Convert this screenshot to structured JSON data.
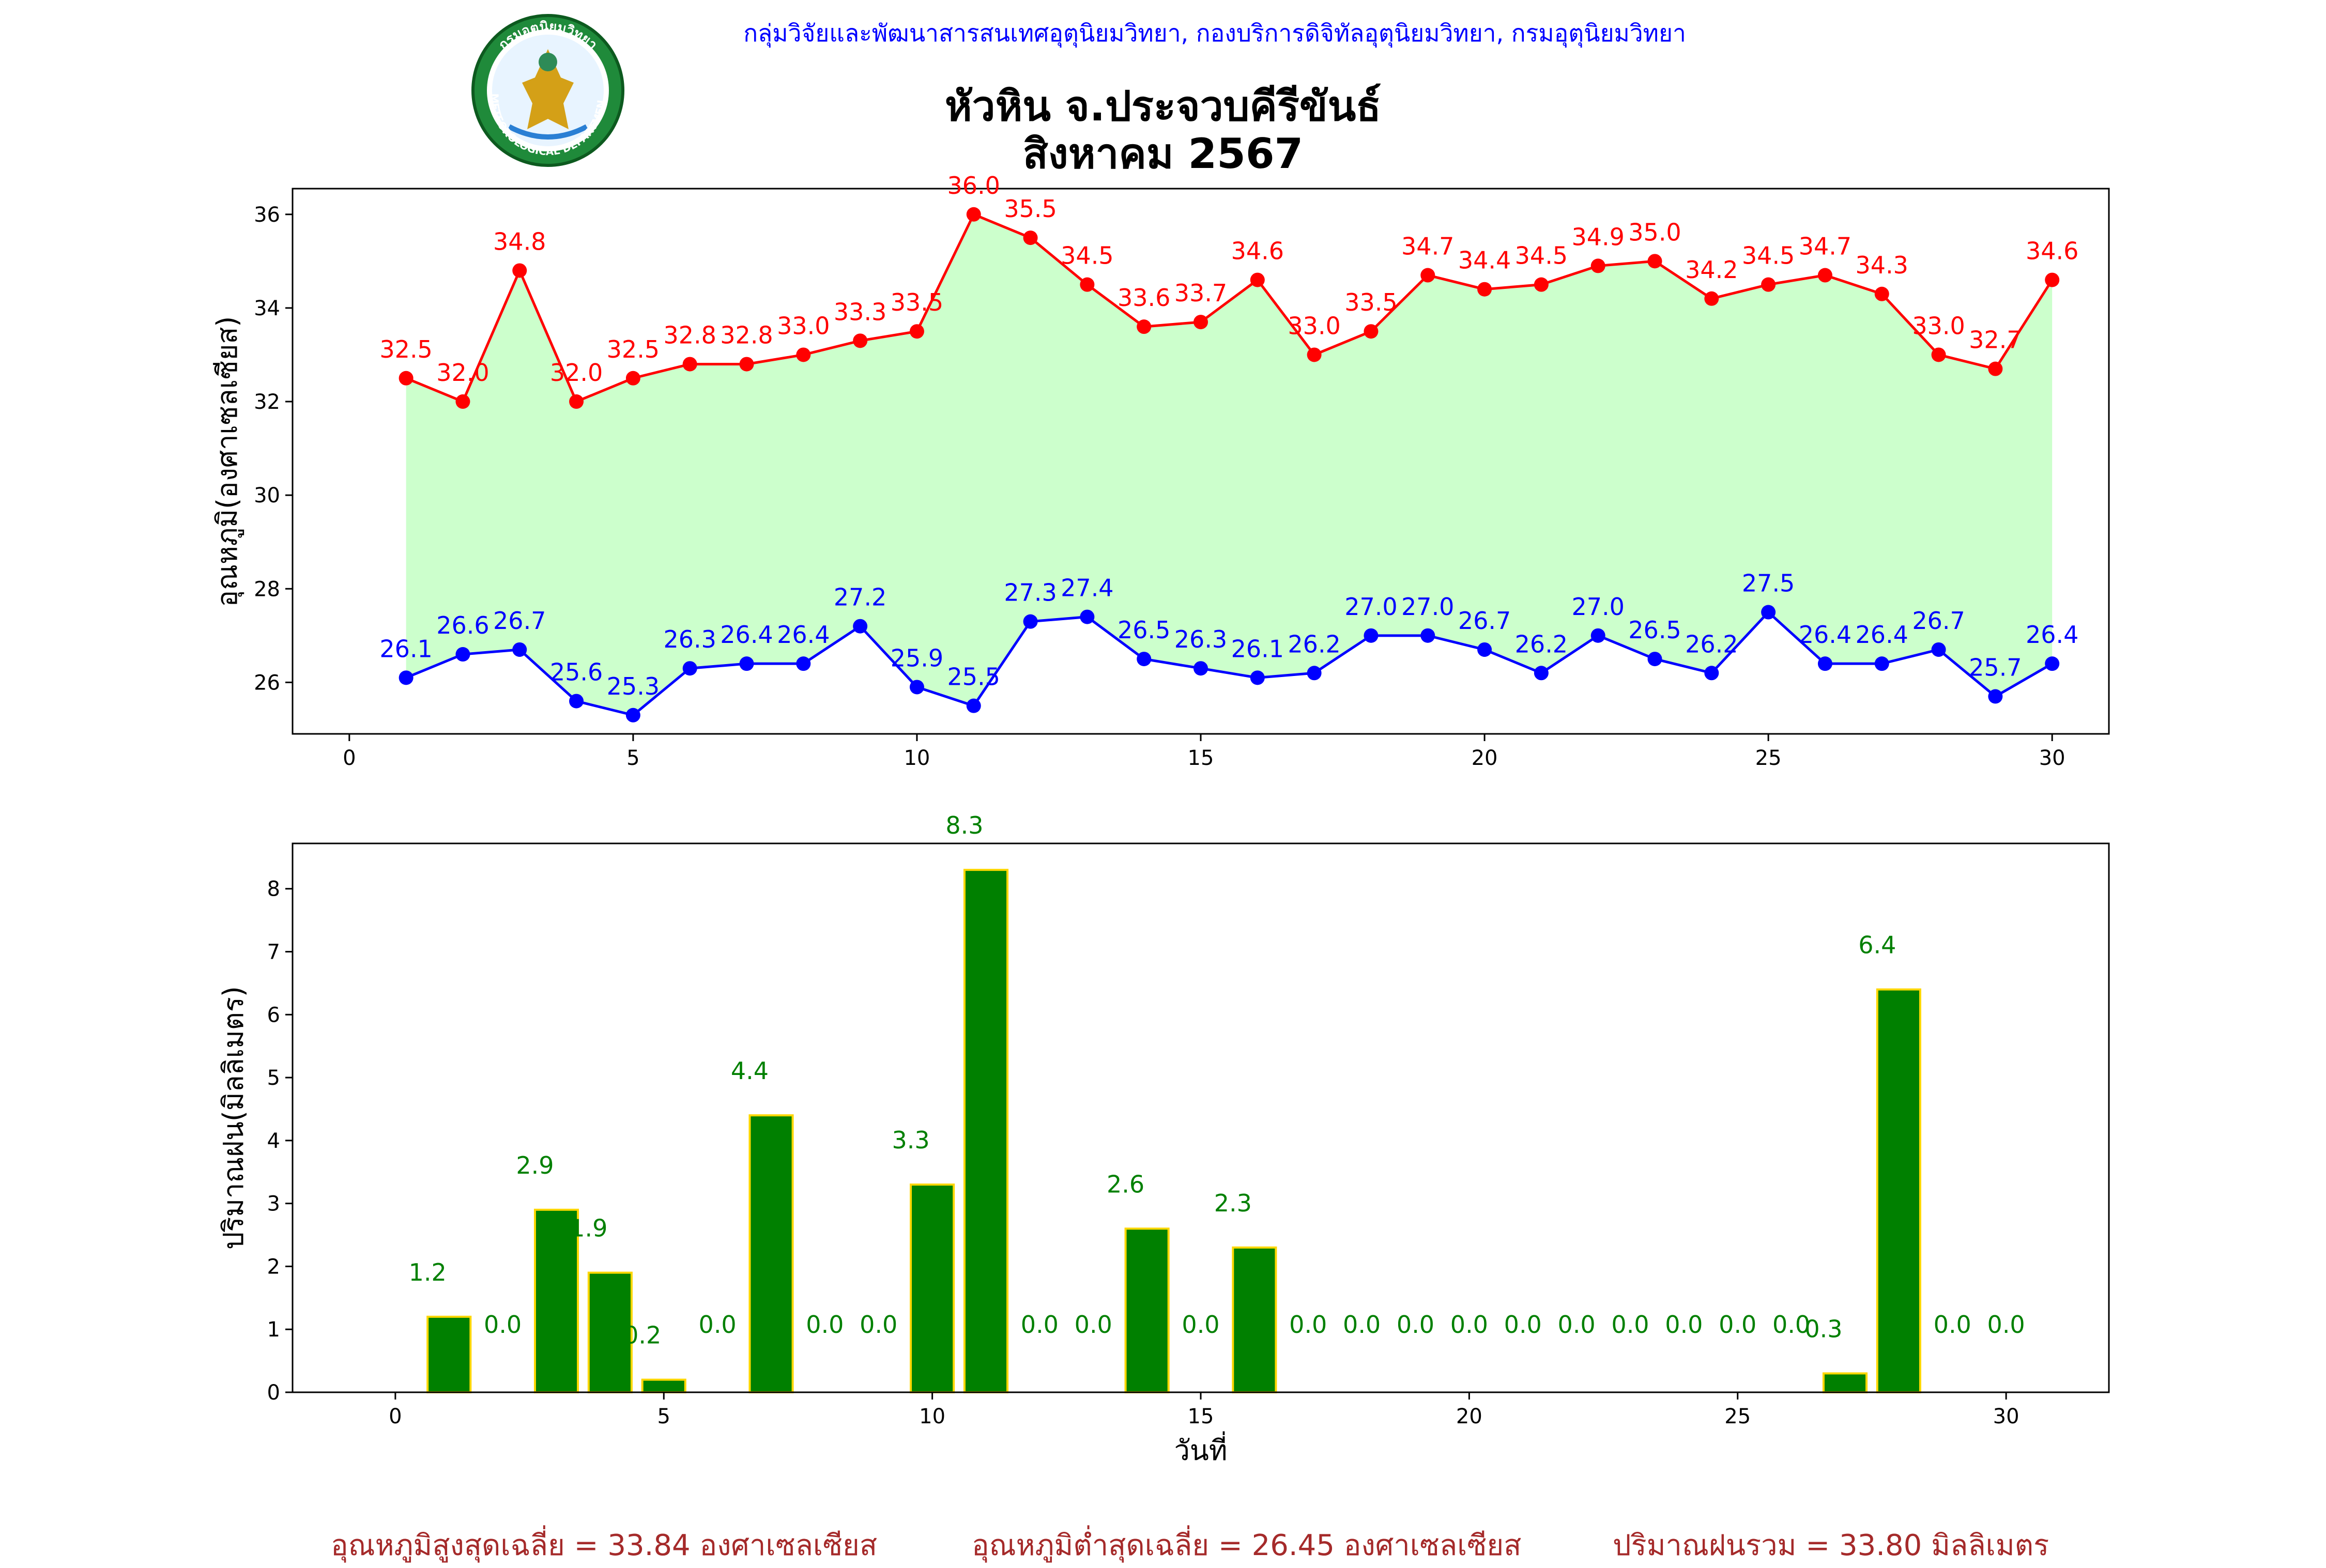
{
  "header": {
    "agency": "กลุ่มวิจัยและพัฒนาสารสนเทศอุตุนิยมวิทยา, กองบริการดิจิทัลอุตุนิยมวิทยา, กรมอุตุนิยมวิทยา",
    "title_line1": "หัวหิน จ.ประจวบคีรีขันธ์",
    "title_line2": "สิงหาคม 2567",
    "logo": {
      "top_text": "กรมอุตุนิยมวิทยา",
      "bottom_text": "METEOROLOGICAL DEPARTMENT"
    }
  },
  "colors": {
    "max_line": "#ff0000",
    "min_line": "#0000ff",
    "fill": "#ccffcc",
    "rain_bar": "#008000",
    "rain_edge": "#ffd700",
    "rain_label": "#008000",
    "footer_text": "#a52a2a"
  },
  "chart_data": [
    {
      "type": "line",
      "ylabel": "อุณหภูมิ(องศาเซลเซียส)",
      "xlabel": "",
      "xlim": [
        -1,
        31
      ],
      "ylim": [
        24.9,
        36.55
      ],
      "xticks": [
        0,
        5,
        10,
        15,
        20,
        25,
        30
      ],
      "yticks": [
        26,
        28,
        30,
        32,
        34,
        36
      ],
      "x": [
        1,
        2,
        3,
        4,
        5,
        6,
        7,
        8,
        9,
        10,
        11,
        12,
        13,
        14,
        15,
        16,
        17,
        18,
        19,
        20,
        21,
        22,
        23,
        24,
        25,
        26,
        27,
        28,
        29,
        30
      ],
      "series": [
        {
          "values": [
            32.5,
            32.0,
            34.8,
            32.0,
            32.5,
            32.8,
            32.8,
            33.0,
            33.3,
            33.5,
            36.0,
            35.5,
            34.5,
            33.6,
            33.7,
            34.6,
            33.0,
            33.5,
            34.7,
            34.4,
            34.5,
            34.9,
            35.0,
            34.2,
            34.5,
            34.7,
            34.3,
            33.0,
            32.7,
            34.6
          ],
          "labels": [
            "32.5",
            "32.0",
            "34.8",
            "32.0",
            "32.5",
            "32.8",
            "32.8",
            "33.0",
            "33.3",
            "33.5",
            "36.0",
            "35.5",
            "34.5",
            "33.6",
            "33.7",
            "34.6",
            "33.0",
            "33.5",
            "34.7",
            "34.4",
            "34.5",
            "34.9",
            "35.0",
            "34.2",
            "34.5",
            "34.7",
            "34.3",
            "33.0",
            "32.7",
            "34.6"
          ]
        },
        {
          "values": [
            26.1,
            26.6,
            26.7,
            25.6,
            25.3,
            26.3,
            26.4,
            26.4,
            27.2,
            25.9,
            25.5,
            27.3,
            27.4,
            26.5,
            26.3,
            26.1,
            26.2,
            27.0,
            27.0,
            26.7,
            26.2,
            27.0,
            26.5,
            26.2,
            27.5,
            26.4,
            26.4,
            26.7,
            25.7,
            26.4
          ],
          "labels": [
            "26.1",
            "26.6",
            "26.7",
            "25.6",
            "25.3",
            "26.3",
            "26.4",
            "26.4",
            "27.2",
            "25.9",
            "25.5",
            "27.3",
            "27.4",
            "26.5",
            "26.3",
            "26.1",
            "26.2",
            "27.0",
            "27.0",
            "26.7",
            "26.2",
            "27.0",
            "26.5",
            "26.2",
            "27.5",
            "26.4",
            "26.4",
            "26.7",
            "25.7",
            "26.4"
          ]
        }
      ],
      "grid": false
    },
    {
      "type": "bar",
      "xlabel": "วันที่",
      "ylabel": "ปริมาณฝน(มิลลิเมตร)",
      "xlim": [
        -1,
        31
      ],
      "ylim": [
        0,
        8.72
      ],
      "xticks": [
        0,
        5,
        10,
        15,
        20,
        25,
        30
      ],
      "yticks": [
        0,
        1,
        2,
        3,
        4,
        5,
        6,
        7,
        8
      ],
      "x": [
        1,
        2,
        3,
        4,
        5,
        6,
        7,
        8,
        9,
        10,
        11,
        12,
        13,
        14,
        15,
        16,
        17,
        18,
        19,
        20,
        21,
        22,
        23,
        24,
        25,
        26,
        27,
        28,
        29,
        30
      ],
      "values": [
        1.2,
        0.0,
        2.9,
        1.9,
        0.2,
        0.0,
        4.4,
        0.0,
        0.0,
        3.3,
        8.3,
        0.0,
        0.0,
        2.6,
        0.0,
        2.3,
        0.0,
        0.0,
        0.0,
        0.0,
        0.0,
        0.0,
        0.0,
        0.0,
        0.0,
        0.0,
        0.3,
        6.4,
        0.0,
        0.0
      ],
      "labels": [
        "1.2",
        "0.0",
        "2.9",
        "1.9",
        "0.2",
        "0.0",
        "4.4",
        "0.0",
        "0.0",
        "3.3",
        "8.3",
        "0.0",
        "0.0",
        "2.6",
        "0.0",
        "2.3",
        "0.0",
        "0.0",
        "0.0",
        "0.0",
        "0.0",
        "0.0",
        "0.0",
        "0.0",
        "0.0",
        "0.0",
        "0.3",
        "6.4",
        "0.0",
        "0.0"
      ],
      "grid": false
    }
  ],
  "footer": {
    "avg_max": "อุณหภูมิสูงสุดเฉลี่ย = 33.84 องศาเซลเซียส",
    "avg_min": "อุณหภูมิต่ำสุดเฉลี่ย = 26.45 องศาเซลเซียส",
    "total_rain": "ปริมาณฝนรวม = 33.80 มิลลิเมตร"
  }
}
